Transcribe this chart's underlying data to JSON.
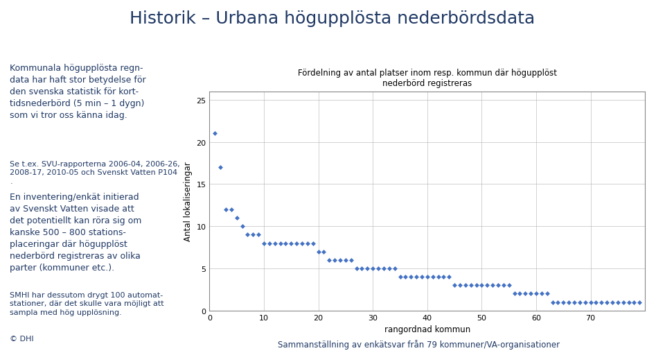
{
  "chart_title_line1": "Fördelning av antal platser inom resp. kommun där högupplöst",
  "chart_title_line2": "nederbörd registreras",
  "xlabel": "rangordnad kommun",
  "ylabel": "Antal lokaliseringar",
  "xlim": [
    0,
    80
  ],
  "ylim": [
    0,
    26
  ],
  "xticks": [
    0,
    10,
    20,
    30,
    40,
    50,
    60,
    70
  ],
  "yticks": [
    0,
    5,
    10,
    15,
    20,
    25
  ],
  "marker_color": "#4472C4",
  "marker": "D",
  "marker_size": 3.5,
  "background_color": "#ffffff",
  "title_color": "#1F3864",
  "text_color": "#1F3864",
  "page_title": "Historik – Urbana högupplösta nederbördsdata",
  "para1": "Kommunala högupplösta regn-\ndata har haft stor betydelse för\nden svenska statistik för kort-\ntidsnederbörd (5 min – 1 dygn)\nsom vi tror oss känna idag.",
  "para2": "Se t.ex. SVU-rapporterna 2006-04, 2006-26,\n2008-17, 2010-05 och Svenskt Vatten P104\n.",
  "para3": "En inventering/enkät initierad\nav Svenskt Vatten visade att\ndet potentiellt kan röra sig om\nkanske 500 – 800 stations-\nplaceringar där högupplöst\nnederbörd registreras av olika\nparter (kommuner etc.).",
  "para4": "SMHI har dessutom drygt 100 automat-\nstationer, där det skulle vara möjligt att\nsampla med hög upplösning.",
  "bottom_caption": "Sammanställning av enkätsvar från 79 kommuner/VA-organisationer",
  "footer_text": "© DHI",
  "x_data": [
    1,
    2,
    3,
    4,
    5,
    6,
    7,
    8,
    9,
    10,
    11,
    12,
    13,
    14,
    15,
    16,
    17,
    18,
    19,
    20,
    21,
    22,
    23,
    24,
    25,
    26,
    27,
    28,
    29,
    30,
    31,
    32,
    33,
    34,
    35,
    36,
    37,
    38,
    39,
    40,
    41,
    42,
    43,
    44,
    45,
    46,
    47,
    48,
    49,
    50,
    51,
    52,
    53,
    54,
    55,
    56,
    57,
    58,
    59,
    60,
    61,
    62,
    63,
    64,
    65,
    66,
    67,
    68,
    69,
    70,
    71,
    72,
    73,
    74,
    75,
    76,
    77,
    78,
    79
  ],
  "y_data": [
    21,
    17,
    12,
    12,
    11,
    10,
    9,
    9,
    9,
    8,
    8,
    8,
    8,
    8,
    8,
    8,
    8,
    8,
    8,
    7,
    7,
    6,
    6,
    6,
    6,
    6,
    5,
    5,
    5,
    5,
    5,
    5,
    5,
    5,
    4,
    4,
    4,
    4,
    4,
    4,
    4,
    4,
    4,
    4,
    3,
    3,
    3,
    3,
    3,
    3,
    3,
    3,
    3,
    3,
    3,
    2,
    2,
    2,
    2,
    2,
    2,
    2,
    1,
    1,
    1,
    1,
    1,
    1,
    1,
    1,
    1,
    1,
    1,
    1,
    1,
    1,
    1,
    1,
    1
  ],
  "dhi_logo_color": "#005B8E",
  "title_fontsize": 18,
  "para_fontsize": 9,
  "small_fontsize": 8
}
